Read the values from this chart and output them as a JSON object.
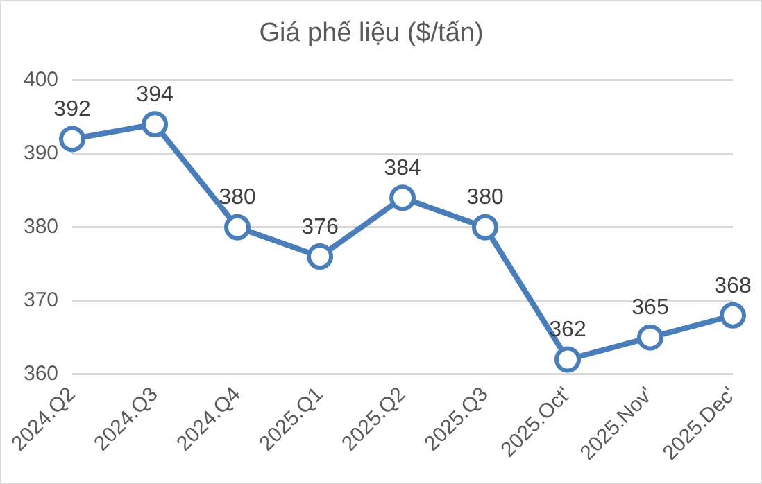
{
  "chart_data": {
    "type": "line",
    "title": "Giá phế liệu ($/tấn)",
    "categories": [
      "2024.Q2",
      "2024.Q3",
      "2024.Q4",
      "2025.Q1",
      "2025.Q2",
      "2025.Q3",
      "2025.Oct'",
      "2025.Nov'",
      "2025.Dec'"
    ],
    "series": [
      {
        "color": "#4a7ebb",
        "values": [
          392,
          394,
          380,
          376,
          384,
          380,
          362,
          365,
          368
        ]
      }
    ],
    "ylim": [
      360,
      400
    ],
    "yticks": [
      360,
      370,
      380,
      390,
      400
    ],
    "grid": "y",
    "legend": false,
    "marker": "circle",
    "line_style": "solid",
    "data_labels": true
  }
}
